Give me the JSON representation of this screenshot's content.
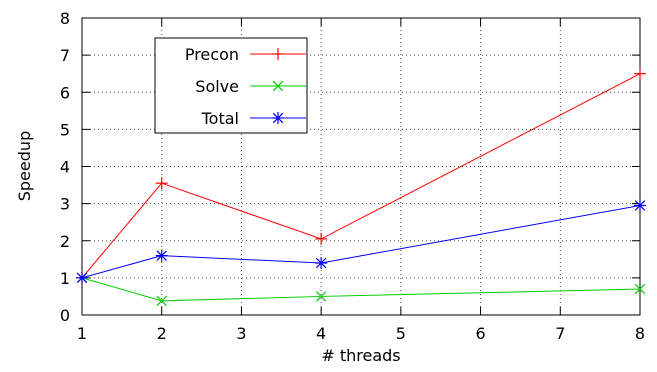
{
  "chart_data": {
    "type": "line",
    "xlabel": "# threads",
    "ylabel": "Speedup",
    "xlim": [
      1,
      8
    ],
    "ylim": [
      0,
      8
    ],
    "x_ticks": [
      1,
      2,
      3,
      4,
      5,
      6,
      7,
      8
    ],
    "y_ticks": [
      0,
      1,
      2,
      3,
      4,
      5,
      6,
      7,
      8
    ],
    "grid": true,
    "legend_placement": "top-left",
    "series": [
      {
        "name": "Precon",
        "color": "#ff0000",
        "marker": "plus",
        "x": [
          1,
          2,
          4,
          8
        ],
        "values": [
          1.0,
          3.55,
          2.05,
          6.5
        ]
      },
      {
        "name": "Solve",
        "color": "#00cc00",
        "marker": "cross",
        "x": [
          1,
          2,
          4,
          8
        ],
        "values": [
          1.0,
          0.38,
          0.5,
          0.7
        ]
      },
      {
        "name": "Total",
        "color": "#0000ff",
        "marker": "asterisk",
        "x": [
          1,
          2,
          4,
          8
        ],
        "values": [
          1.0,
          1.6,
          1.4,
          2.95
        ]
      }
    ]
  }
}
